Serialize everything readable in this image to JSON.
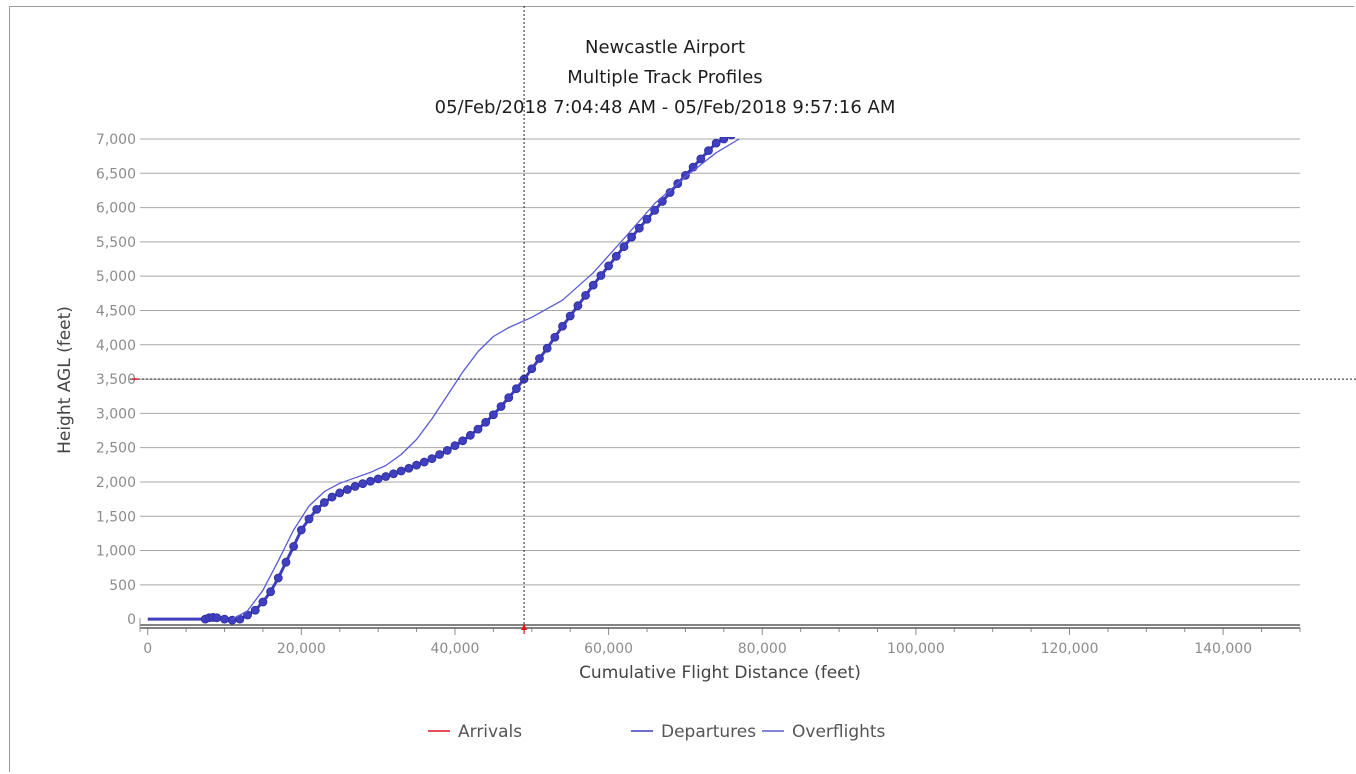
{
  "chart_data": {
    "type": "line",
    "title_lines": [
      "Newcastle Airport",
      "Multiple Track Profiles",
      "05/Feb/2018 7:04:48 AM - 05/Feb/2018 9:57:16 AM"
    ],
    "xlabel": "Cumulative Flight Distance (feet)",
    "ylabel": "Height AGL (feet)",
    "xlim": [
      -1000,
      150000
    ],
    "ylim": [
      -100,
      7000
    ],
    "x_ticks": [
      0,
      20000,
      40000,
      60000,
      80000,
      100000,
      120000,
      140000
    ],
    "x_tick_labels": [
      "0",
      "20,000",
      "40,000",
      "60,000",
      "80,000",
      "100,000",
      "120,000",
      "140,000"
    ],
    "y_ticks": [
      0,
      500,
      1000,
      1500,
      2000,
      2500,
      3000,
      3500,
      4000,
      4500,
      5000,
      5500,
      6000,
      6500,
      7000
    ],
    "y_tick_labels": [
      "0",
      "500",
      "1,000",
      "1,500",
      "2,000",
      "2,500",
      "3,000",
      "3,500",
      "4,000",
      "4,500",
      "5,000",
      "5,500",
      "6,000",
      "6,500",
      "7,000"
    ],
    "grid": "horizontal",
    "crosshair": {
      "x": 49000,
      "y": 3500
    },
    "legend_position": "bottom",
    "series": [
      {
        "name": "Arrivals",
        "color": "#e0141e",
        "points": []
      },
      {
        "name": "Departures",
        "color": "#3f3fbf",
        "markers": true,
        "points": [
          [
            0,
            0
          ],
          [
            6000,
            0
          ],
          [
            7500,
            0
          ],
          [
            8000,
            20
          ],
          [
            8500,
            25
          ],
          [
            9000,
            20
          ],
          [
            10000,
            0
          ],
          [
            11000,
            -15
          ],
          [
            12000,
            0
          ],
          [
            13000,
            60
          ],
          [
            14000,
            130
          ],
          [
            15000,
            250
          ],
          [
            16000,
            400
          ],
          [
            17000,
            600
          ],
          [
            18000,
            830
          ],
          [
            19000,
            1060
          ],
          [
            20000,
            1300
          ],
          [
            21000,
            1460
          ],
          [
            22000,
            1600
          ],
          [
            23000,
            1700
          ],
          [
            24000,
            1780
          ],
          [
            25000,
            1840
          ],
          [
            26000,
            1890
          ],
          [
            27000,
            1935
          ],
          [
            28000,
            1975
          ],
          [
            29000,
            2010
          ],
          [
            30000,
            2045
          ],
          [
            31000,
            2080
          ],
          [
            32000,
            2120
          ],
          [
            33000,
            2160
          ],
          [
            34000,
            2200
          ],
          [
            35000,
            2245
          ],
          [
            36000,
            2290
          ],
          [
            37000,
            2340
          ],
          [
            38000,
            2400
          ],
          [
            39000,
            2460
          ],
          [
            40000,
            2530
          ],
          [
            41000,
            2600
          ],
          [
            42000,
            2680
          ],
          [
            43000,
            2770
          ],
          [
            44000,
            2870
          ],
          [
            45000,
            2980
          ],
          [
            46000,
            3100
          ],
          [
            47000,
            3230
          ],
          [
            48000,
            3360
          ],
          [
            49000,
            3500
          ],
          [
            50000,
            3650
          ],
          [
            51000,
            3800
          ],
          [
            52000,
            3950
          ],
          [
            53000,
            4110
          ],
          [
            54000,
            4270
          ],
          [
            55000,
            4420
          ],
          [
            56000,
            4570
          ],
          [
            57000,
            4720
          ],
          [
            58000,
            4870
          ],
          [
            59000,
            5010
          ],
          [
            60000,
            5150
          ],
          [
            61000,
            5290
          ],
          [
            62000,
            5430
          ],
          [
            63000,
            5570
          ],
          [
            64000,
            5700
          ],
          [
            65000,
            5830
          ],
          [
            66000,
            5960
          ],
          [
            67000,
            6090
          ],
          [
            68000,
            6220
          ],
          [
            69000,
            6350
          ],
          [
            70000,
            6470
          ],
          [
            71000,
            6590
          ],
          [
            72000,
            6710
          ],
          [
            73000,
            6830
          ],
          [
            74000,
            6940
          ],
          [
            75000,
            7000
          ],
          [
            76000,
            7060
          ],
          [
            77000,
            7100
          ],
          [
            78000,
            7130
          ],
          [
            79000,
            7150
          ],
          [
            80000,
            7160
          ],
          [
            81000,
            7160
          ],
          [
            82000,
            7160
          ]
        ]
      },
      {
        "name": "Overflights",
        "color": "#5a5ad6",
        "points": [
          [
            11000,
            0
          ],
          [
            13000,
            120
          ],
          [
            15000,
            420
          ],
          [
            17000,
            850
          ],
          [
            19000,
            1300
          ],
          [
            21000,
            1650
          ],
          [
            23000,
            1860
          ],
          [
            25000,
            1980
          ],
          [
            27000,
            2060
          ],
          [
            29000,
            2140
          ],
          [
            31000,
            2240
          ],
          [
            33000,
            2400
          ],
          [
            35000,
            2620
          ],
          [
            37000,
            2920
          ],
          [
            39000,
            3260
          ],
          [
            41000,
            3600
          ],
          [
            43000,
            3900
          ],
          [
            45000,
            4120
          ],
          [
            47000,
            4250
          ],
          [
            50000,
            4400
          ],
          [
            54000,
            4650
          ],
          [
            58000,
            5050
          ],
          [
            62000,
            5550
          ],
          [
            66000,
            6060
          ],
          [
            70000,
            6450
          ],
          [
            74000,
            6800
          ],
          [
            77000,
            7000
          ]
        ]
      }
    ]
  }
}
